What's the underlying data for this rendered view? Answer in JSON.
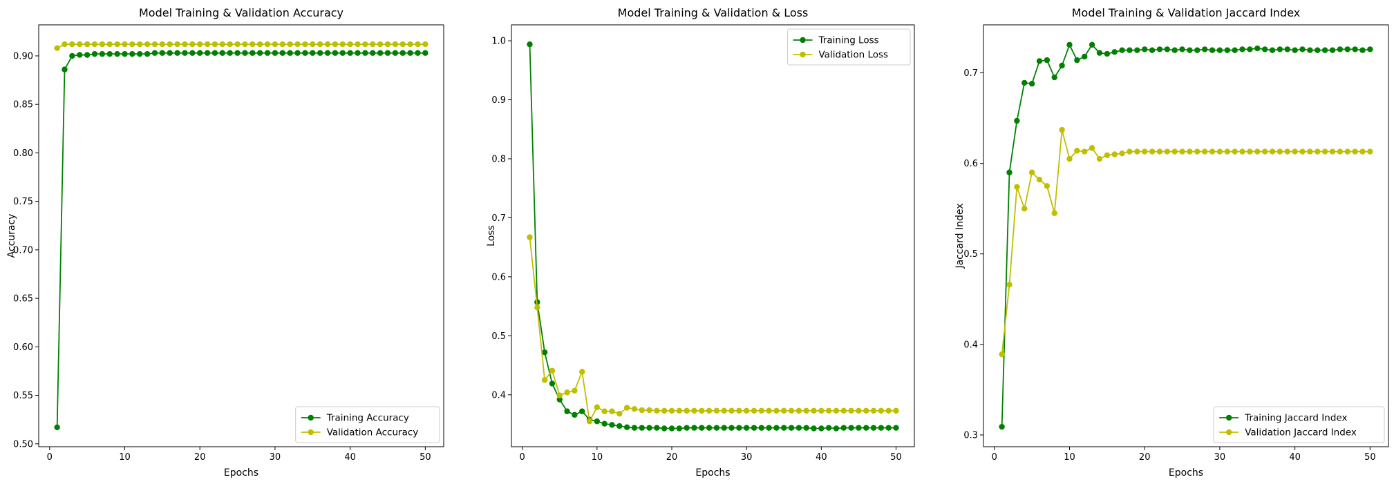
{
  "colors": {
    "training": "#008000",
    "validation": "#bfbf00"
  },
  "chart_data": [
    {
      "type": "line",
      "title": "Model Training & Validation Accuracy",
      "xlabel": "Epochs",
      "ylabel": "Accuracy",
      "xlim": [
        -1.45,
        52.45
      ],
      "ylim": [
        0.497,
        0.932
      ],
      "xticks": [
        0,
        10,
        20,
        30,
        40,
        50
      ],
      "yticks": [
        0.5,
        0.55,
        0.6,
        0.65,
        0.7,
        0.75,
        0.8,
        0.85,
        0.9
      ],
      "ytick_decimals": 2,
      "legend_loc": "lower-right",
      "grid": false,
      "x": [
        1,
        2,
        3,
        4,
        5,
        6,
        7,
        8,
        9,
        10,
        11,
        12,
        13,
        14,
        15,
        16,
        17,
        18,
        19,
        20,
        21,
        22,
        23,
        24,
        25,
        26,
        27,
        28,
        29,
        30,
        31,
        32,
        33,
        34,
        35,
        36,
        37,
        38,
        39,
        40,
        41,
        42,
        43,
        44,
        45,
        46,
        47,
        48,
        49,
        50
      ],
      "series": [
        {
          "name": "Training Accuracy",
          "color_key": "training",
          "values": [
            0.517,
            0.886,
            0.9,
            0.901,
            0.901,
            0.902,
            0.902,
            0.902,
            0.902,
            0.902,
            0.902,
            0.902,
            0.902,
            0.903,
            0.903,
            0.903,
            0.903,
            0.903,
            0.903,
            0.903,
            0.903,
            0.903,
            0.903,
            0.903,
            0.903,
            0.903,
            0.903,
            0.903,
            0.903,
            0.903,
            0.903,
            0.903,
            0.903,
            0.903,
            0.903,
            0.903,
            0.903,
            0.903,
            0.903,
            0.903,
            0.903,
            0.903,
            0.903,
            0.903,
            0.903,
            0.903,
            0.903,
            0.903,
            0.903,
            0.903
          ]
        },
        {
          "name": "Validation Accuracy",
          "color_key": "validation",
          "values": [
            0.908,
            0.912,
            0.912,
            0.912,
            0.912,
            0.912,
            0.912,
            0.912,
            0.912,
            0.912,
            0.912,
            0.912,
            0.912,
            0.912,
            0.912,
            0.912,
            0.912,
            0.912,
            0.912,
            0.912,
            0.912,
            0.912,
            0.912,
            0.912,
            0.912,
            0.912,
            0.912,
            0.912,
            0.912,
            0.912,
            0.912,
            0.912,
            0.912,
            0.912,
            0.912,
            0.912,
            0.912,
            0.912,
            0.912,
            0.912,
            0.912,
            0.912,
            0.912,
            0.912,
            0.912,
            0.912,
            0.912,
            0.912,
            0.912,
            0.912
          ]
        }
      ]
    },
    {
      "type": "line",
      "title": "Model Training & Validation & Loss",
      "xlabel": "Epochs",
      "ylabel": "Loss",
      "xlim": [
        -1.45,
        52.45
      ],
      "ylim": [
        0.312,
        1.027
      ],
      "xticks": [
        0,
        10,
        20,
        30,
        40,
        50
      ],
      "yticks": [
        0.4,
        0.5,
        0.6,
        0.7,
        0.8,
        0.9,
        1.0
      ],
      "ytick_decimals": 1,
      "legend_loc": "upper-right",
      "grid": false,
      "x": [
        1,
        2,
        3,
        4,
        5,
        6,
        7,
        8,
        9,
        10,
        11,
        12,
        13,
        14,
        15,
        16,
        17,
        18,
        19,
        20,
        21,
        22,
        23,
        24,
        25,
        26,
        27,
        28,
        29,
        30,
        31,
        32,
        33,
        34,
        35,
        36,
        37,
        38,
        39,
        40,
        41,
        42,
        43,
        44,
        45,
        46,
        47,
        48,
        49,
        50
      ],
      "series": [
        {
          "name": "Training Loss",
          "color_key": "training",
          "values": [
            0.994,
            0.557,
            0.472,
            0.419,
            0.392,
            0.372,
            0.366,
            0.372,
            0.358,
            0.355,
            0.351,
            0.349,
            0.347,
            0.345,
            0.344,
            0.344,
            0.344,
            0.344,
            0.343,
            0.343,
            0.343,
            0.344,
            0.344,
            0.344,
            0.344,
            0.344,
            0.344,
            0.344,
            0.344,
            0.344,
            0.344,
            0.344,
            0.344,
            0.344,
            0.344,
            0.344,
            0.344,
            0.344,
            0.343,
            0.343,
            0.344,
            0.343,
            0.344,
            0.344,
            0.344,
            0.344,
            0.344,
            0.344,
            0.344,
            0.344
          ]
        },
        {
          "name": "Validation Loss",
          "color_key": "validation",
          "values": [
            0.667,
            0.548,
            0.425,
            0.441,
            0.399,
            0.404,
            0.407,
            0.439,
            0.355,
            0.379,
            0.372,
            0.372,
            0.368,
            0.378,
            0.376,
            0.374,
            0.374,
            0.373,
            0.373,
            0.373,
            0.373,
            0.373,
            0.373,
            0.373,
            0.373,
            0.373,
            0.373,
            0.373,
            0.373,
            0.373,
            0.373,
            0.373,
            0.373,
            0.373,
            0.373,
            0.373,
            0.373,
            0.373,
            0.373,
            0.373,
            0.373,
            0.373,
            0.373,
            0.373,
            0.373,
            0.373,
            0.373,
            0.373,
            0.373,
            0.373
          ]
        }
      ]
    },
    {
      "type": "line",
      "title": "Model Training & Validation Jaccard Index",
      "xlabel": "Epochs",
      "ylabel": "Jaccard Index",
      "xlim": [
        -1.45,
        52.45
      ],
      "ylim": [
        0.287,
        0.753
      ],
      "xticks": [
        0,
        10,
        20,
        30,
        40,
        50
      ],
      "yticks": [
        0.3,
        0.4,
        0.5,
        0.6,
        0.7
      ],
      "ytick_decimals": 1,
      "legend_loc": "lower-right",
      "grid": false,
      "x": [
        1,
        2,
        3,
        4,
        5,
        6,
        7,
        8,
        9,
        10,
        11,
        12,
        13,
        14,
        15,
        16,
        17,
        18,
        19,
        20,
        21,
        22,
        23,
        24,
        25,
        26,
        27,
        28,
        29,
        30,
        31,
        32,
        33,
        34,
        35,
        36,
        37,
        38,
        39,
        40,
        41,
        42,
        43,
        44,
        45,
        46,
        47,
        48,
        49,
        50
      ],
      "series": [
        {
          "name": "Training Jaccard Index",
          "color_key": "training",
          "values": [
            0.309,
            0.59,
            0.647,
            0.689,
            0.688,
            0.713,
            0.714,
            0.695,
            0.708,
            0.731,
            0.714,
            0.718,
            0.731,
            0.722,
            0.721,
            0.723,
            0.725,
            0.725,
            0.725,
            0.726,
            0.725,
            0.726,
            0.726,
            0.725,
            0.726,
            0.725,
            0.725,
            0.726,
            0.725,
            0.725,
            0.725,
            0.725,
            0.726,
            0.726,
            0.727,
            0.726,
            0.725,
            0.726,
            0.726,
            0.725,
            0.726,
            0.725,
            0.725,
            0.725,
            0.725,
            0.726,
            0.726,
            0.726,
            0.725,
            0.726
          ]
        },
        {
          "name": "Validation Jaccard Index",
          "color_key": "validation",
          "values": [
            0.389,
            0.466,
            0.574,
            0.55,
            0.59,
            0.582,
            0.575,
            0.545,
            0.637,
            0.605,
            0.614,
            0.613,
            0.617,
            0.605,
            0.609,
            0.61,
            0.611,
            0.613,
            0.613,
            0.613,
            0.613,
            0.613,
            0.613,
            0.613,
            0.613,
            0.613,
            0.613,
            0.613,
            0.613,
            0.613,
            0.613,
            0.613,
            0.613,
            0.613,
            0.613,
            0.613,
            0.613,
            0.613,
            0.613,
            0.613,
            0.613,
            0.613,
            0.613,
            0.613,
            0.613,
            0.613,
            0.613,
            0.613,
            0.613,
            0.613
          ]
        }
      ]
    }
  ]
}
